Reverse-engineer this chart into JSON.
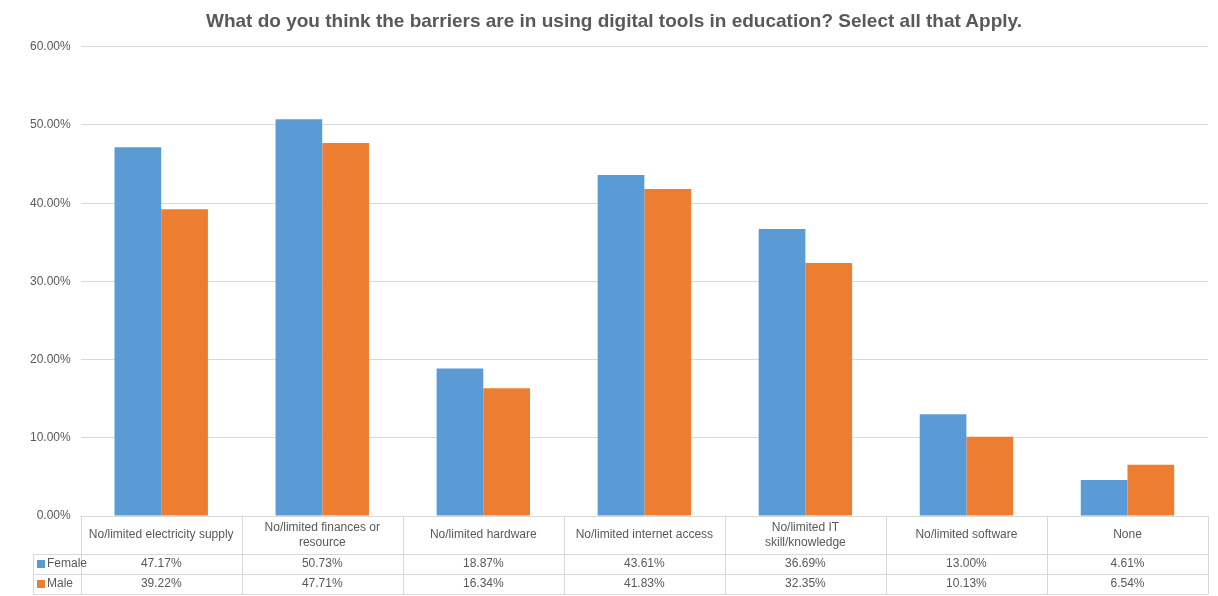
{
  "chart_data": {
    "type": "bar",
    "title": "What do you think the barriers are in using digital tools in education? Select all that Apply.",
    "categories": [
      "No/limited electricity supply",
      "No/limited finances or resource",
      "No/limited hardware",
      "No/limited internet access",
      "No/limited IT skill/knowledge",
      "No/limited software",
      "None"
    ],
    "series": [
      {
        "name": "Female",
        "color": "#5b9bd5",
        "values": [
          47.17,
          50.73,
          18.87,
          43.61,
          36.69,
          13.0,
          4.61
        ],
        "value_labels": [
          "47.17%",
          "50.73%",
          "18.87%",
          "43.61%",
          "36.69%",
          "13.00%",
          "4.61%"
        ]
      },
      {
        "name": "Male",
        "color": "#ed7d31",
        "values": [
          39.22,
          47.71,
          16.34,
          41.83,
          32.35,
          10.13,
          6.54
        ],
        "value_labels": [
          "39.22%",
          "47.71%",
          "16.34%",
          "41.83%",
          "32.35%",
          "10.13%",
          "6.54%"
        ]
      }
    ],
    "ylim": [
      0,
      60
    ],
    "yticks": [
      {
        "value": 0,
        "label": "0.00%"
      },
      {
        "value": 10,
        "label": "10.00%"
      },
      {
        "value": 20,
        "label": "20.00%"
      },
      {
        "value": 30,
        "label": "30.00%"
      },
      {
        "value": 40,
        "label": "40.00%"
      },
      {
        "value": 50,
        "label": "50.00%"
      },
      {
        "value": 60,
        "label": "60.00%"
      }
    ],
    "grid": "y",
    "legend": "bottom"
  }
}
